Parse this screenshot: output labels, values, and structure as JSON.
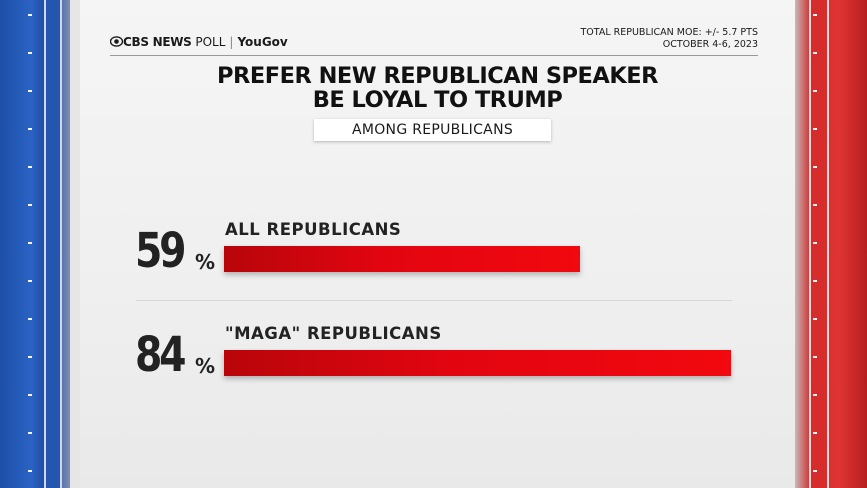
{
  "header": {
    "logo_brand": "CBS NEWS",
    "logo_poll": "POLL",
    "logo_partner": "YouGov",
    "moe_line1": "TOTAL REPUBLICAN MOE: +/- 5.7 PTS",
    "moe_line2": "OCTOBER 4-6, 2023"
  },
  "colors": {
    "bar": "#e20510",
    "left_panel": "#2456b0",
    "right_panel": "#d62c2c"
  },
  "icons": {
    "logo": "cbs-eye-icon"
  },
  "chart_data": {
    "type": "bar",
    "orientation": "horizontal",
    "title_line1": "PREFER NEW REPUBLICAN SPEAKER",
    "title_line2": "BE LOYAL TO TRUMP",
    "subtitle": "AMONG REPUBLICANS",
    "categories": [
      "ALL REPUBLICANS",
      "\"MAGA\" REPUBLICANS"
    ],
    "values": [
      59,
      84
    ],
    "value_labels": [
      "59",
      "84"
    ],
    "unit": "%",
    "xlim": [
      0,
      84
    ],
    "grid": false,
    "legend": "none"
  }
}
